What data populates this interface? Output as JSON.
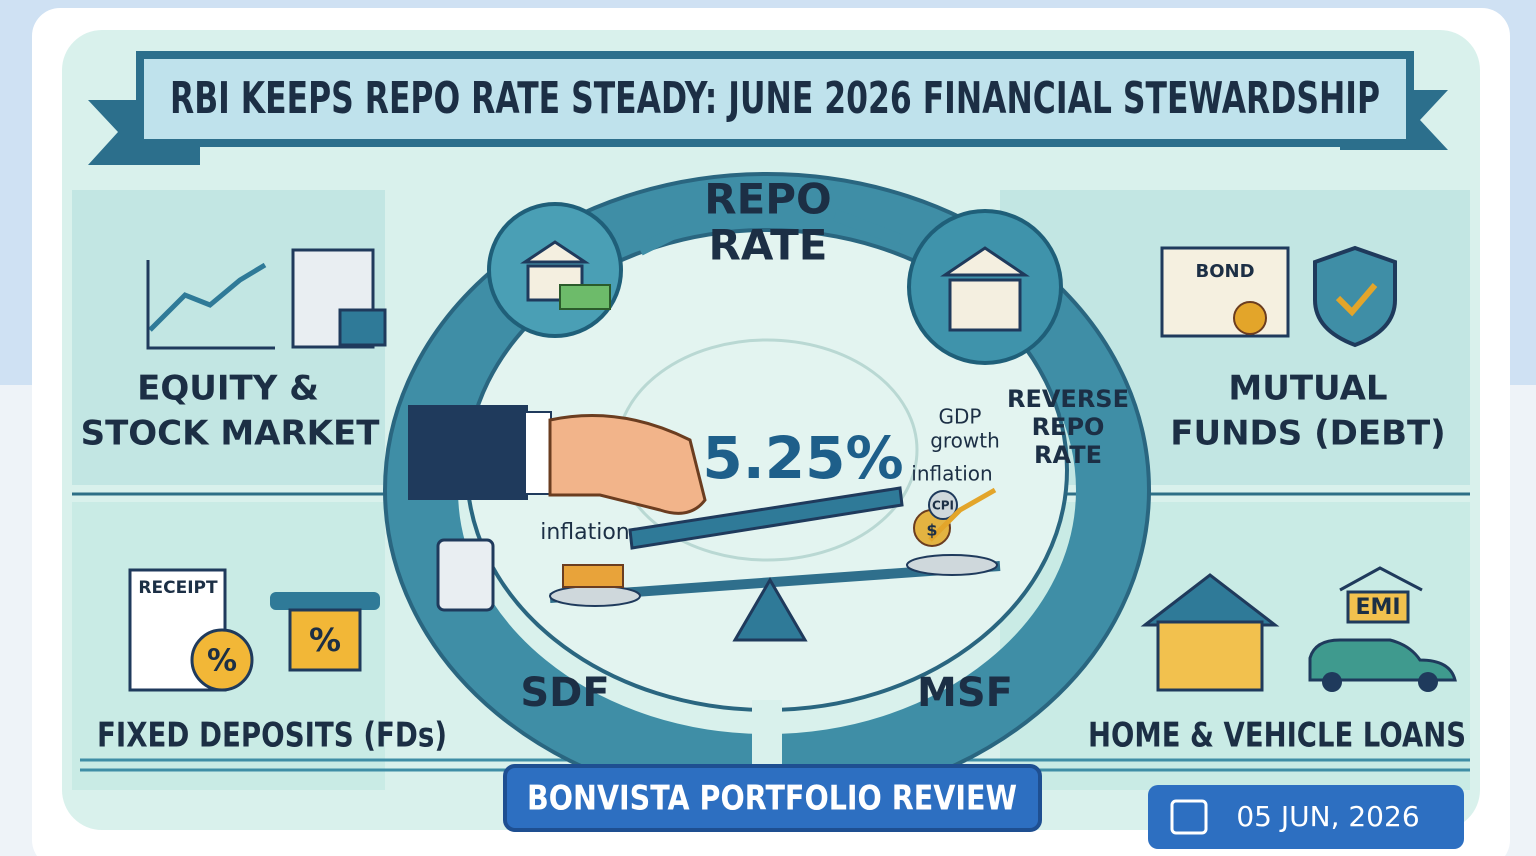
{
  "header": {
    "title": "RBI KEEPS REPO RATE STEADY: JUNE 2026 FINANCIAL STEWARDSHIP"
  },
  "center": {
    "repo_rate": [
      "REPO",
      "RATE"
    ],
    "reverse_repo_rate": [
      "REVERSE",
      "REPO",
      "RATE"
    ],
    "rate": "5.25%",
    "gdp_growth": [
      "GDP",
      "growth"
    ],
    "inflation_right": "inflation",
    "inflation_left": "inflation",
    "cpi": "CPI",
    "currency": "$",
    "sdf": "SDF",
    "msf": "MSF"
  },
  "quadrants": {
    "equity": [
      "EQUITY &",
      "STOCK MARKET"
    ],
    "mutual_funds": [
      "MUTUAL",
      "FUNDS (DEBT)"
    ],
    "fixed_deposits": [
      "FIXED DEPOSITS (FDs)"
    ],
    "loans": [
      "HOME & VEHICLE LOANS"
    ]
  },
  "icons": {
    "bond": "BOND",
    "receipt": "RECEIPT",
    "percent_receipt": "%",
    "percent_card": "%",
    "emi": "EMI"
  },
  "footer": {
    "review": "BONVISTA PORTFOLIO REVIEW",
    "date": "05 JUN, 2026"
  }
}
